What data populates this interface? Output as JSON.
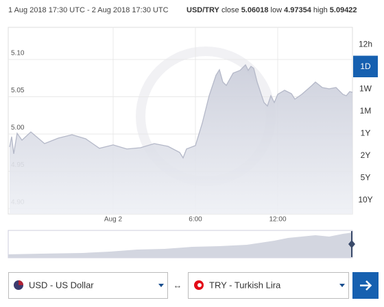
{
  "chart_data": {
    "type": "area",
    "title": "1 Aug 2018 17:30 UTC - 2 Aug 2018 17:30 UTC",
    "pair": "USD/TRY",
    "stats": [
      {
        "label": "close",
        "value": 5.06018
      },
      {
        "label": "low",
        "value": 4.97354
      },
      {
        "label": "high",
        "value": 5.09422
      }
    ],
    "x": [
      16.45,
      16.6,
      16.75,
      17.0,
      17.35,
      18.0,
      19.0,
      20.0,
      21.0,
      22.0,
      23.0,
      24.0,
      25.0,
      26.0,
      27.0,
      28.0,
      28.85,
      29.1,
      29.35,
      30.0,
      30.5,
      31.0,
      31.5,
      31.75,
      32.0,
      32.25,
      32.75,
      33.25,
      33.65,
      33.85,
      34.05,
      34.25,
      34.5,
      35.0,
      35.25,
      35.5,
      35.75,
      36.0,
      36.5,
      37.0,
      37.25,
      37.75,
      38.5,
      38.75,
      39.25,
      39.75,
      40.25,
      40.75,
      41.0,
      41.25,
      41.45
    ],
    "series": [
      {
        "name": "USD/TRY",
        "color": "#b4b8c8",
        "values": [
          4.9826,
          4.9964,
          4.9735,
          5.001,
          4.9918,
          5.0028,
          4.9872,
          4.9945,
          4.9991,
          4.9936,
          4.9808,
          4.9854,
          4.9799,
          4.9817,
          4.9872,
          4.9835,
          4.9753,
          4.968,
          4.9799,
          4.9845,
          5.0147,
          5.0514,
          5.0789,
          5.0862,
          5.0697,
          5.0652,
          5.0817,
          5.0853,
          5.0927,
          5.0853,
          5.0908,
          5.0881,
          5.0697,
          5.0422,
          5.0376,
          5.0514,
          5.0422,
          5.0532,
          5.0587,
          5.0541,
          5.0468,
          5.0532,
          5.0652,
          5.0697,
          5.0624,
          5.0606,
          5.0624,
          5.0532,
          5.0514,
          5.0569,
          5.056
        ]
      }
    ],
    "xlim": [
      16.35,
      41.45
    ],
    "xticks": [
      {
        "value": 24,
        "label": "Aug 2"
      },
      {
        "value": 30,
        "label": "6:00"
      },
      {
        "value": 36,
        "label": "12:00"
      }
    ],
    "ylim": [
      4.8927,
      5.1431
    ],
    "yticks": [
      {
        "value": 4.9,
        "label": "4.90"
      },
      4.95,
      {
        "value": 5.0,
        "label": "5.00"
      },
      5.05,
      {
        "value": 5.1,
        "label": "5.10"
      }
    ],
    "grid": true,
    "range_buttons": [
      "12h",
      "1D",
      "1W",
      "1M",
      "1Y",
      "2Y",
      "5Y",
      "10Y"
    ]
  },
  "converter": {
    "from": "USD - US Dollar",
    "to": "TRY - Turkish Lira"
  }
}
